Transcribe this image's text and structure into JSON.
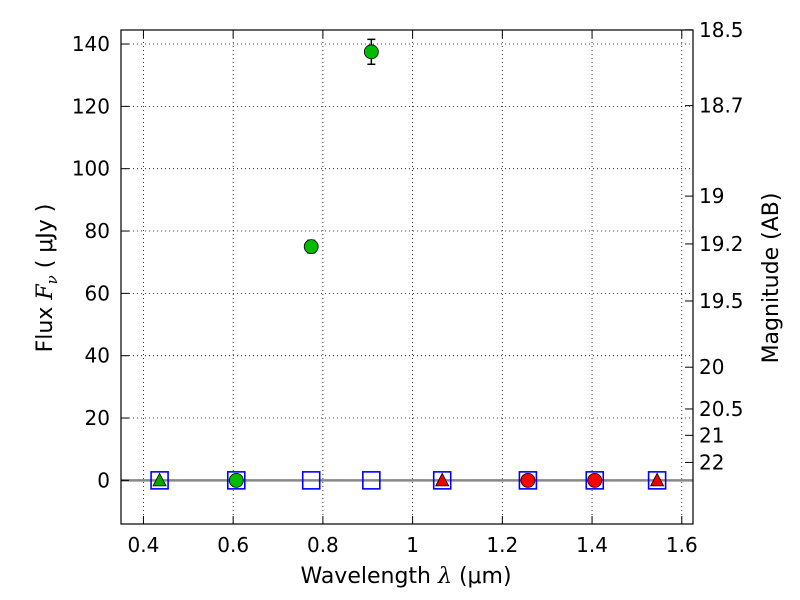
{
  "chart_data": {
    "type": "scatter",
    "xlabel_text": "Wavelength",
    "xlabel_symbol": "λ",
    "xlabel_unit": "(μm)",
    "ylabel_text": "Flux",
    "ylabel_symbol": "F",
    "ylabel_subscript": "ν",
    "ylabel_unit": "( μJy )",
    "y2label": "Magnitude (AB)",
    "xlim": [
      0.35,
      1.625
    ],
    "ylim": [
      -14,
      144.5
    ],
    "grid": true,
    "x_ticks": [
      {
        "value": 0.4,
        "label": "0.4"
      },
      {
        "value": 0.6,
        "label": "0.6"
      },
      {
        "value": 0.8,
        "label": "0.8"
      },
      {
        "value": 1.0,
        "label": "1"
      },
      {
        "value": 1.2,
        "label": "1.2"
      },
      {
        "value": 1.4,
        "label": "1.4"
      },
      {
        "value": 1.6,
        "label": "1.6"
      }
    ],
    "y_ticks": [
      {
        "value": 0,
        "label": "0"
      },
      {
        "value": 20,
        "label": "20"
      },
      {
        "value": 40,
        "label": "40"
      },
      {
        "value": 60,
        "label": "60"
      },
      {
        "value": 80,
        "label": "80"
      },
      {
        "value": 100,
        "label": "100"
      },
      {
        "value": 120,
        "label": "120"
      },
      {
        "value": 140,
        "label": "140"
      }
    ],
    "y2_ticks": [
      {
        "value": 18.5,
        "label": "18.5"
      },
      {
        "value": 18.7,
        "label": "18.7"
      },
      {
        "value": 19,
        "label": "19"
      },
      {
        "value": 19.2,
        "label": "19.2"
      },
      {
        "value": 19.5,
        "label": "19.5"
      },
      {
        "value": 20,
        "label": "20"
      },
      {
        "value": 20.5,
        "label": "20.5"
      },
      {
        "value": 21,
        "label": "21"
      },
      {
        "value": 22,
        "label": "22"
      }
    ],
    "zero_line": 0,
    "series": [
      {
        "marker": "circle",
        "fill": "#00bb00",
        "stroke": "#000000",
        "points": [
          {
            "x": 0.607,
            "y": 0,
            "err": 0
          },
          {
            "x": 0.774,
            "y": 75,
            "err": 2
          },
          {
            "x": 0.908,
            "y": 137.5,
            "err": 4
          }
        ]
      },
      {
        "marker": "triangle",
        "fill": "#00aa00",
        "stroke": "#000000",
        "points": [
          {
            "x": 0.436,
            "y": 0,
            "err": 0
          }
        ]
      },
      {
        "marker": "square-open",
        "fill": "none",
        "stroke": "#0000ff",
        "points": [
          {
            "x": 0.436,
            "y": 0,
            "err": 0
          },
          {
            "x": 0.607,
            "y": 0,
            "err": 0
          },
          {
            "x": 0.774,
            "y": 0,
            "err": 0
          },
          {
            "x": 0.908,
            "y": 0,
            "err": 0
          },
          {
            "x": 1.066,
            "y": 0,
            "err": 0
          },
          {
            "x": 1.257,
            "y": 0,
            "err": 0
          },
          {
            "x": 1.406,
            "y": 0,
            "err": 0
          },
          {
            "x": 1.545,
            "y": 0,
            "err": 0
          }
        ]
      },
      {
        "marker": "circle",
        "fill": "#ff0000",
        "stroke": "#000000",
        "points": [
          {
            "x": 1.257,
            "y": 0,
            "err": 0
          },
          {
            "x": 1.406,
            "y": 0,
            "err": 0
          }
        ]
      },
      {
        "marker": "triangle",
        "fill": "#ee0000",
        "stroke": "#000000",
        "points": [
          {
            "x": 1.066,
            "y": 0,
            "err": 0
          },
          {
            "x": 1.545,
            "y": 0,
            "err": 0
          }
        ]
      }
    ]
  }
}
